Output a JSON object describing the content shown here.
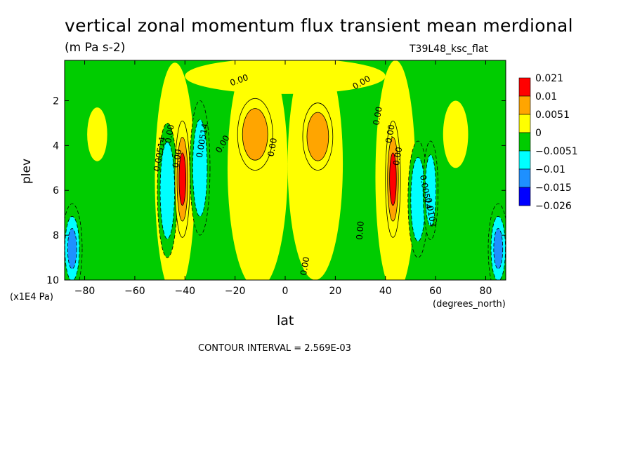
{
  "chart_data": {
    "type": "heatmap",
    "title": "vertical zonal momentum flux transient mean merdional",
    "units": "(m Pa s-2)",
    "run_label": "T39L48_ksc_flat",
    "xlabel": "lat",
    "x_unit": "(degrees_north)",
    "ylabel": "plev",
    "y_unit": "(x1E4 Pa)",
    "xlim": [
      -88,
      88
    ],
    "ylim": [
      0.2,
      10
    ],
    "y_inverted": true,
    "x_ticks": [
      -80,
      -60,
      -40,
      -20,
      0,
      20,
      40,
      60,
      80
    ],
    "y_ticks": [
      2,
      4,
      6,
      8,
      10
    ],
    "contour_interval_label": "CONTOUR INTERVAL = 2.569E-03",
    "legend": {
      "placement": "right",
      "levels": [
        "0.021",
        "0.01",
        "0.0051",
        "0",
        "-0.0051",
        "-0.01",
        "-0.015",
        "-0.026"
      ],
      "colors": [
        "#ff0000",
        "#ffa500",
        "#ffff00",
        "#00cc00",
        "#00ffff",
        "#1e90ff",
        "#0000ff"
      ]
    },
    "contour_labels": [
      {
        "text": "0.00",
        "lat": -18,
        "plev": 1.2,
        "angle": -20
      },
      {
        "text": "0.00",
        "lat": 31,
        "plev": 1.3,
        "angle": -30
      },
      {
        "text": "0.00514",
        "lat": -49,
        "plev": 4.4,
        "angle": -80
      },
      {
        "text": "0.00",
        "lat": -45,
        "plev": 3.5,
        "angle": -80
      },
      {
        "text": "0.00",
        "lat": -42,
        "plev": 4.6,
        "angle": -80
      },
      {
        "text": "0.00514",
        "lat": -32,
        "plev": 3.8,
        "angle": -80
      },
      {
        "text": "0.00",
        "lat": -24,
        "plev": 4.0,
        "angle": -60
      },
      {
        "text": "0.00",
        "lat": -4,
        "plev": 4.1,
        "angle": -80
      },
      {
        "text": "0.00",
        "lat": 38,
        "plev": 2.7,
        "angle": -80
      },
      {
        "text": "0.00",
        "lat": 43,
        "plev": 3.5,
        "angle": -80
      },
      {
        "text": "0.00",
        "lat": 46,
        "plev": 4.5,
        "angle": -80
      },
      {
        "text": "0.00514",
        "lat": 55,
        "plev": 6.1,
        "angle": 80
      },
      {
        "text": "0.0103",
        "lat": 57,
        "plev": 7.0,
        "angle": 80
      },
      {
        "text": "0.00",
        "lat": 31,
        "plev": 7.8,
        "angle": -85
      },
      {
        "text": "0.00",
        "lat": 9,
        "plev": 9.4,
        "angle": -80
      }
    ],
    "fields": [
      {
        "lat": -47,
        "plev": 6.0,
        "value": -0.008,
        "rx": 4,
        "ry": 3.0
      },
      {
        "lat": -34,
        "plev": 5.0,
        "value": -0.009,
        "rx": 4,
        "ry": 3.0
      },
      {
        "lat": -85,
        "plev": 8.6,
        "value": -0.014,
        "rx": 4,
        "ry": 2.0
      },
      {
        "lat": -41,
        "plev": 5.5,
        "value": 0.016,
        "rx": 3,
        "ry": 2.6
      },
      {
        "lat": -12,
        "plev": 3.5,
        "value": 0.007,
        "rx": 7,
        "ry": 1.6
      },
      {
        "lat": 13,
        "plev": 3.6,
        "value": 0.006,
        "rx": 6,
        "ry": 1.5
      },
      {
        "lat": 43,
        "plev": 5.5,
        "value": 0.016,
        "rx": 3,
        "ry": 2.6
      },
      {
        "lat": 53,
        "plev": 6.4,
        "value": -0.009,
        "rx": 4,
        "ry": 2.6
      },
      {
        "lat": 58,
        "plev": 6.0,
        "value": -0.011,
        "rx": 3,
        "ry": 2.2
      },
      {
        "lat": 85,
        "plev": 8.6,
        "value": -0.014,
        "rx": 4,
        "ry": 2.0
      }
    ]
  }
}
